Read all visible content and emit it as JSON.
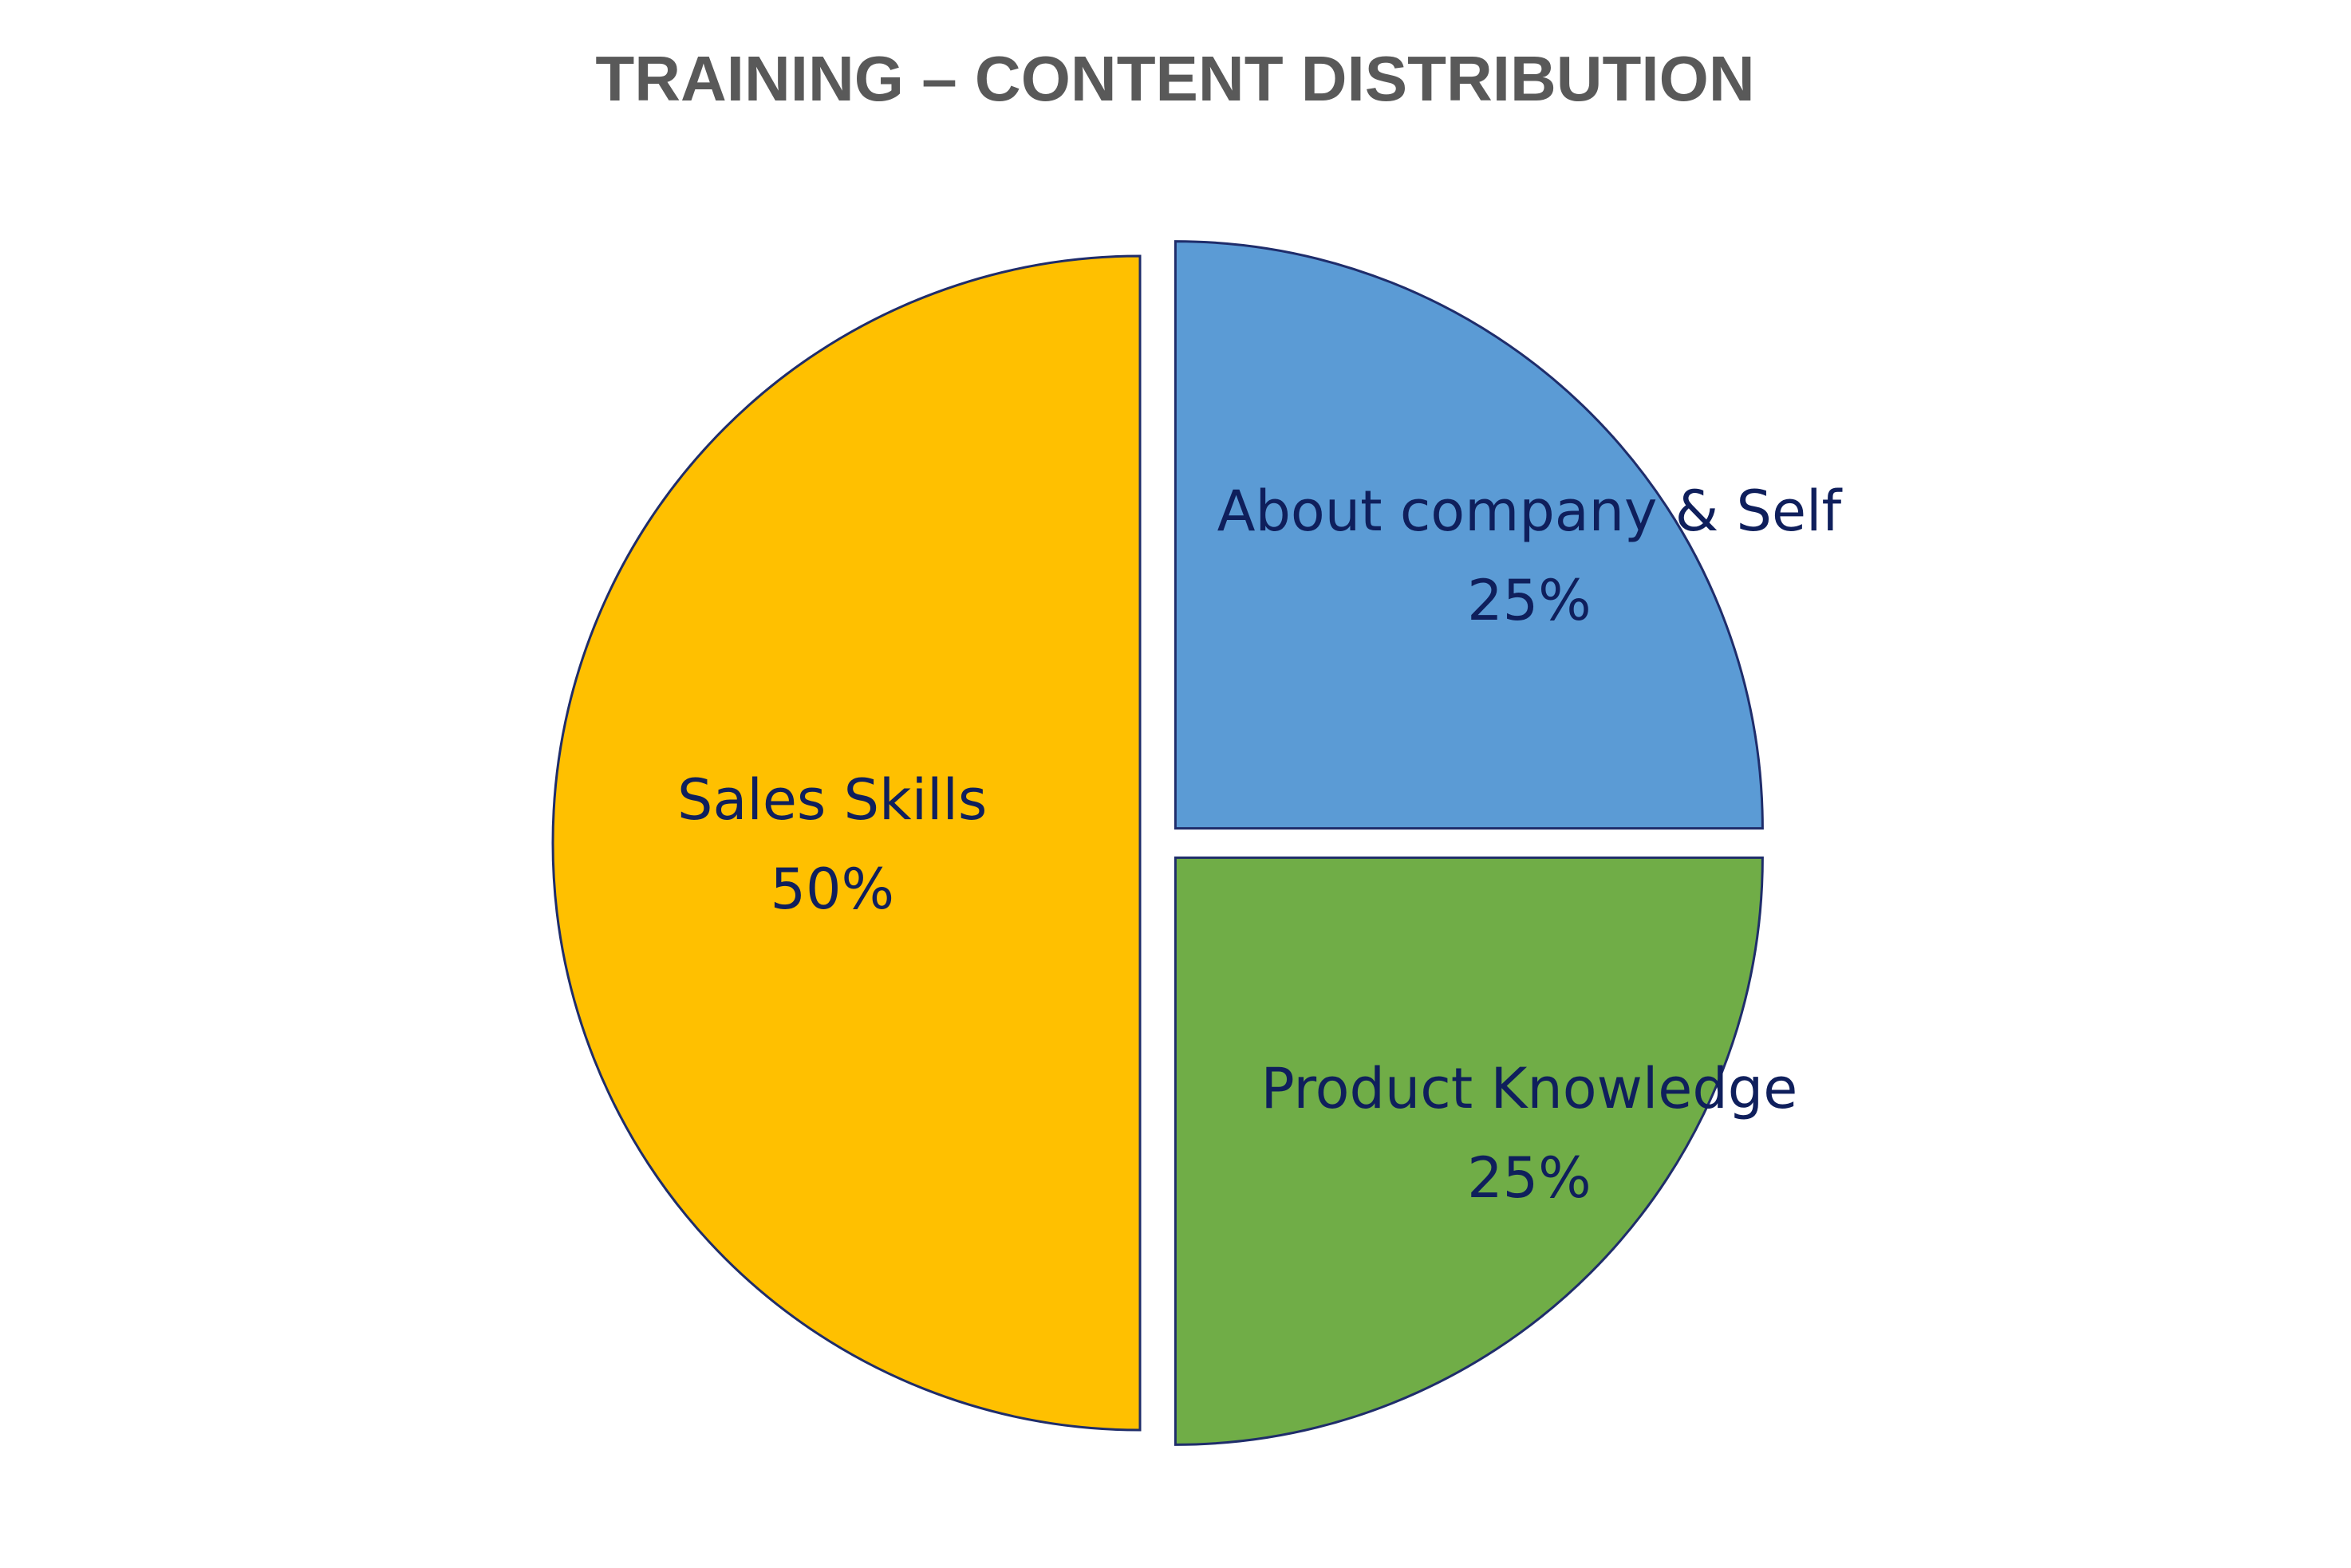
{
  "chart_data": {
    "type": "pie",
    "title": "TRAINING – CONTENT DISTRIBUTION",
    "slices": [
      {
        "label": "About company & Self",
        "value": 25,
        "display": "25%",
        "color": "#5b9bd5"
      },
      {
        "label": "Product Knowledge",
        "value": 25,
        "display": "25%",
        "color": "#70ad47"
      },
      {
        "label": "Sales Skills",
        "value": 50,
        "display": "50%",
        "color": "#ffc000"
      }
    ],
    "start_angle": "12 o'clock, clockwise",
    "exploded": true,
    "border_color": "#1f2d6b",
    "legend": "none (data labels on slices)"
  }
}
